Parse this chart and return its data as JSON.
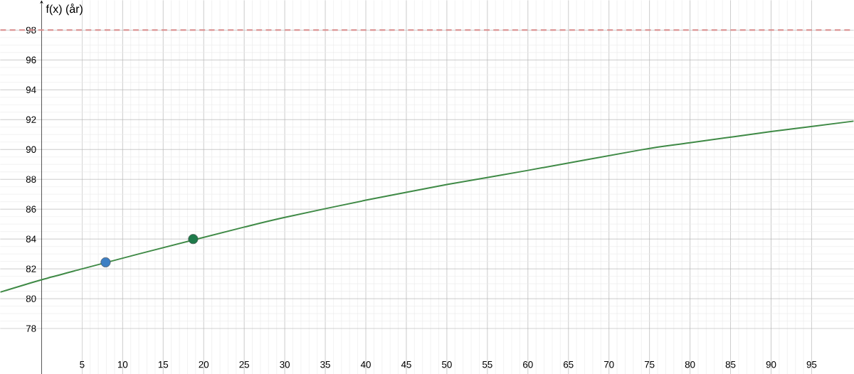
{
  "chart_data": {
    "type": "line",
    "ylabel": "f(x) (år)",
    "xlim": [
      -5.1,
      100.2
    ],
    "ylim": [
      74.95,
      100
    ],
    "xticks": [
      5,
      10,
      15,
      20,
      25,
      30,
      35,
      40,
      45,
      50,
      55,
      60,
      65,
      70,
      75,
      80,
      85,
      90,
      95
    ],
    "yticks": [
      78,
      80,
      82,
      84,
      86,
      88,
      90,
      92,
      94,
      96,
      98
    ],
    "grid": true,
    "series": [
      {
        "color": "#3f8a46",
        "marker": "none",
        "x": [
          -5.1,
          0,
          5,
          12,
          25,
          30,
          40,
          50,
          60,
          73.9,
          80,
          90,
          100.2
        ],
        "values": [
          80.44,
          81.27,
          82.0,
          83.0,
          84.8,
          85.45,
          86.6,
          87.65,
          88.6,
          89.97,
          90.45,
          91.2,
          91.9
        ]
      },
      {
        "type": "scatter",
        "color": "#3d7fc4",
        "marker": "circle",
        "x": [
          7.9
        ],
        "values": [
          82.44
        ]
      },
      {
        "type": "scatter",
        "color": "#1e7a4a",
        "marker": "circle",
        "x": [
          18.7
        ],
        "values": [
          84.0
        ]
      }
    ],
    "ref_lines": [
      {
        "axis": "y",
        "value": 98,
        "color": "#d98c8c",
        "line_style": "dashed"
      }
    ]
  }
}
